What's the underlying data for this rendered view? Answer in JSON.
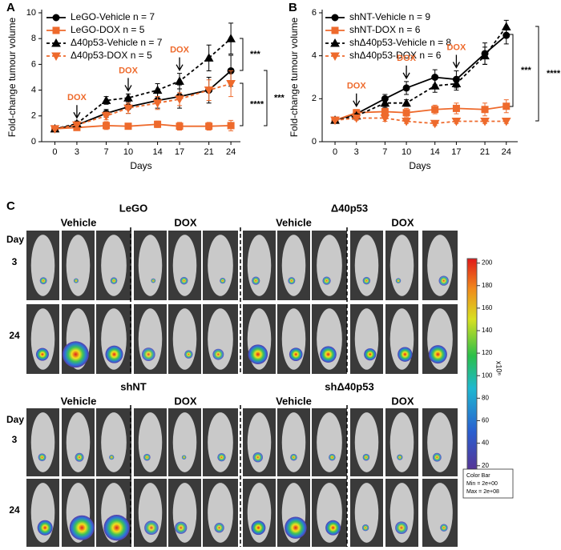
{
  "chart_data": [
    {
      "type": "line",
      "panel": "A",
      "ylabel": "Fold-change tumour volume",
      "xlabel": "Days",
      "x": [
        0,
        3,
        7,
        10,
        14,
        17,
        21,
        24
      ],
      "xlim": [
        -1.8,
        25.3
      ],
      "xticks": [
        0,
        3,
        7,
        10,
        14,
        17,
        21,
        24
      ],
      "ylim": [
        0,
        10
      ],
      "yticks": [
        0,
        2,
        4,
        6,
        8,
        10
      ],
      "series": [
        {
          "name": "LeGO-Vehicle n = 7",
          "color": "#000000",
          "marker": "circle",
          "dashed": false,
          "values": [
            1,
            1.3,
            2.2,
            2.7,
            3.2,
            3.5,
            4.0,
            5.5
          ],
          "errors": [
            0.1,
            0.2,
            0.3,
            0.5,
            0.6,
            0.9,
            1.0,
            1.2
          ]
        },
        {
          "name": "LeGO-DOX n = 5",
          "color": "#ee6a2c",
          "marker": "square",
          "dashed": false,
          "values": [
            1,
            1.1,
            1.25,
            1.2,
            1.35,
            1.2,
            1.2,
            1.25
          ],
          "errors": [
            0.05,
            0.1,
            0.3,
            0.2,
            0.25,
            0.3,
            0.3,
            0.4
          ]
        },
        {
          "name": "Δ40p53-Vehicle n = 7",
          "color": "#000000",
          "marker": "triangle-up",
          "dashed": true,
          "values": [
            1,
            1.4,
            3.2,
            3.4,
            4.0,
            4.7,
            6.5,
            8.0
          ],
          "errors": [
            0.1,
            0.2,
            0.3,
            0.3,
            0.5,
            0.6,
            1.0,
            1.2
          ]
        },
        {
          "name": "Δ40p53-DOX n = 5",
          "color": "#ee6a2c",
          "marker": "triangle-down",
          "dashed": true,
          "values": [
            1,
            1.3,
            2.0,
            2.6,
            3.0,
            3.3,
            4.0,
            4.5
          ],
          "errors": [
            0.1,
            0.2,
            0.3,
            0.4,
            0.5,
            0.5,
            0.8,
            1.0
          ]
        }
      ],
      "annotations": [
        {
          "text": "DOX",
          "x": 3
        },
        {
          "text": "DOX",
          "x": 10
        },
        {
          "text": "DOX",
          "x": 17
        }
      ],
      "significance": [
        "***",
        "***",
        "****"
      ]
    },
    {
      "type": "line",
      "panel": "B",
      "ylabel": "Fold-change tumour volume",
      "xlabel": "Days",
      "x": [
        0,
        3,
        7,
        10,
        14,
        17,
        21,
        24
      ],
      "xlim": [
        -1.8,
        25.6
      ],
      "xticks": [
        0,
        3,
        7,
        10,
        14,
        17,
        21,
        24
      ],
      "ylim": [
        0,
        6
      ],
      "yticks": [
        0,
        2,
        4,
        6
      ],
      "series": [
        {
          "name": "shNT-Vehicle n = 9",
          "color": "#000000",
          "marker": "circle",
          "dashed": false,
          "values": [
            1,
            1.3,
            2.0,
            2.5,
            3.0,
            2.9,
            4.1,
            4.95
          ],
          "errors": [
            0.05,
            0.15,
            0.2,
            0.3,
            0.35,
            0.4,
            0.5,
            0.4
          ]
        },
        {
          "name": "shNT-DOX n = 6",
          "color": "#ee6a2c",
          "marker": "square",
          "dashed": false,
          "values": [
            1,
            1.35,
            1.4,
            1.35,
            1.5,
            1.55,
            1.5,
            1.65
          ],
          "errors": [
            0.05,
            0.15,
            0.2,
            0.2,
            0.2,
            0.25,
            0.3,
            0.3
          ]
        },
        {
          "name": "shΔ40p53-Vehicle n = 8",
          "color": "#000000",
          "marker": "triangle-up",
          "dashed": true,
          "values": [
            1,
            1.2,
            1.8,
            1.8,
            2.6,
            2.7,
            4.0,
            5.35
          ],
          "errors": [
            0.05,
            0.1,
            0.2,
            0.15,
            0.3,
            0.3,
            0.4,
            0.3
          ]
        },
        {
          "name": "shΔ40p53-DOX n = 6",
          "color": "#ee6a2c",
          "marker": "triangle-down",
          "dashed": true,
          "values": [
            1,
            1.1,
            1.1,
            0.95,
            0.85,
            0.95,
            0.95,
            0.95
          ],
          "errors": [
            0.05,
            0.1,
            0.15,
            0.1,
            0.1,
            0.1,
            0.1,
            0.1
          ]
        }
      ],
      "annotations": [
        {
          "text": "DOX",
          "x": 3
        },
        {
          "text": "DOX",
          "x": 10
        },
        {
          "text": "DOX",
          "x": 17
        }
      ],
      "significance": [
        "***",
        "****"
      ]
    }
  ],
  "imaging": {
    "panel": "C",
    "groups": [
      {
        "title": "LeGO",
        "conditions": [
          "Vehicle",
          "DOX"
        ]
      },
      {
        "title": "Δ40p53",
        "conditions": [
          "Vehicle",
          "DOX"
        ]
      },
      {
        "title": "shNT",
        "conditions": [
          "Vehicle",
          "DOX"
        ]
      },
      {
        "title": "shΔ40p53",
        "conditions": [
          "Vehicle",
          "DOX"
        ]
      }
    ],
    "day_label": "Day",
    "days": [
      "3",
      "24"
    ],
    "colorbar": {
      "lim": [
        12,
        204
      ],
      "ticks": [
        20,
        40,
        60,
        80,
        100,
        120,
        140,
        160,
        180,
        200
      ],
      "unit_label": "x10⁶",
      "box": [
        "Color Bar",
        "Min = 2e+00",
        "Max = 2e+08"
      ]
    }
  }
}
